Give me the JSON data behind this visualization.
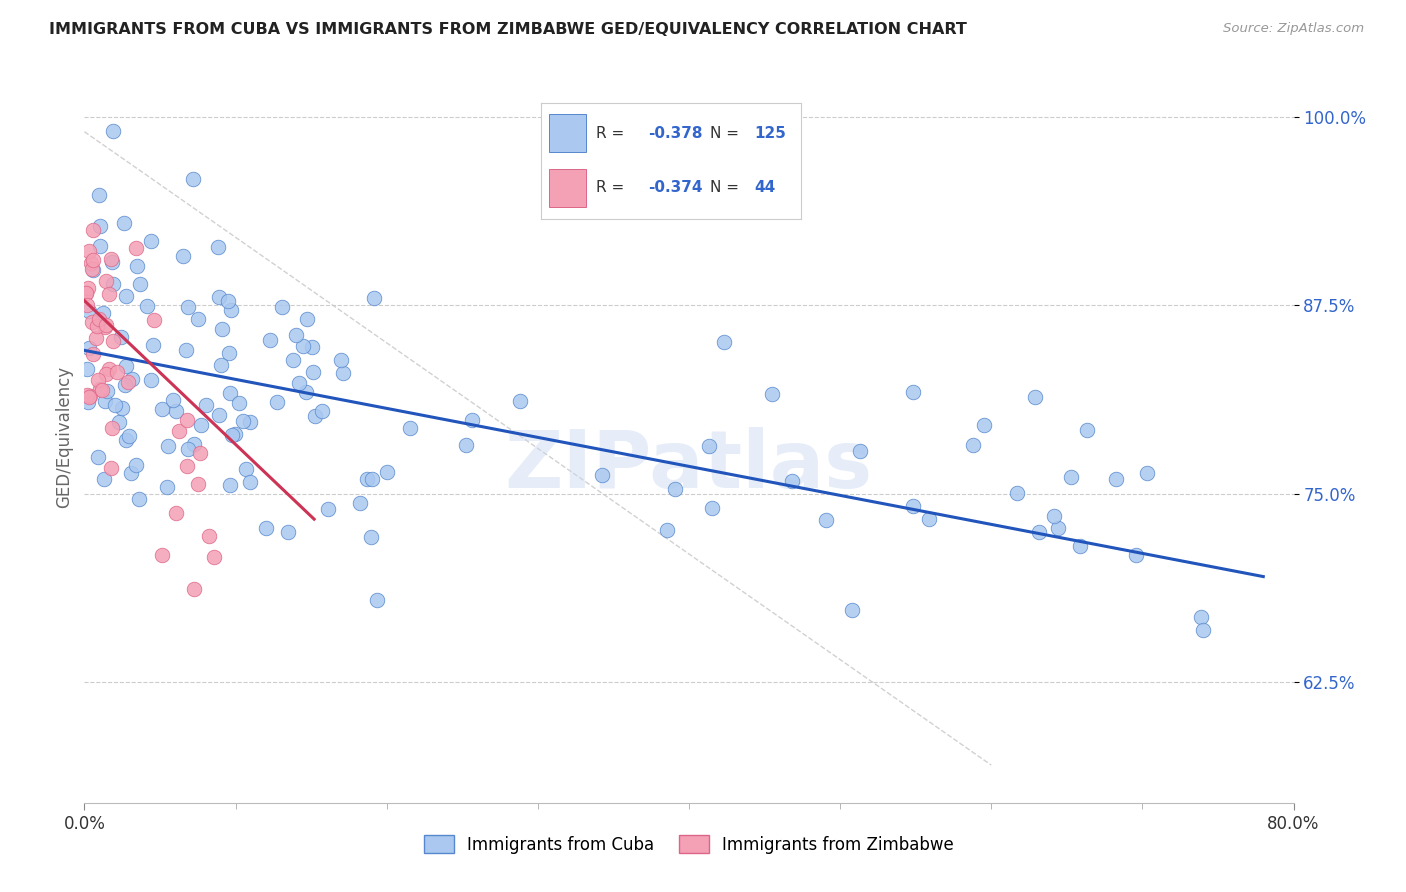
{
  "title": "IMMIGRANTS FROM CUBA VS IMMIGRANTS FROM ZIMBABWE GED/EQUIVALENCY CORRELATION CHART",
  "source": "Source: ZipAtlas.com",
  "ylabel": "GED/Equivalency",
  "yticks": [
    0.625,
    0.75,
    0.875,
    1.0
  ],
  "ytick_labels": [
    "62.5%",
    "75.0%",
    "87.5%",
    "100.0%"
  ],
  "xlim": [
    0.0,
    0.8
  ],
  "ylim": [
    0.545,
    1.03
  ],
  "legend_r_cuba": "-0.378",
  "legend_n_cuba": "125",
  "legend_r_zim": "-0.374",
  "legend_n_zim": "44",
  "cuba_color": "#aac8f0",
  "zim_color": "#f4a0b5",
  "cuba_edge": "#5588cc",
  "zim_edge": "#dd6688",
  "blue_line_color": "#2255bb",
  "pink_line_color": "#cc3355",
  "ref_line_color": "#cccccc",
  "background": "#ffffff",
  "grid_color": "#cccccc",
  "title_color": "#222222",
  "legend_r_color": "#3366cc",
  "legend_n_color": "#3366cc"
}
